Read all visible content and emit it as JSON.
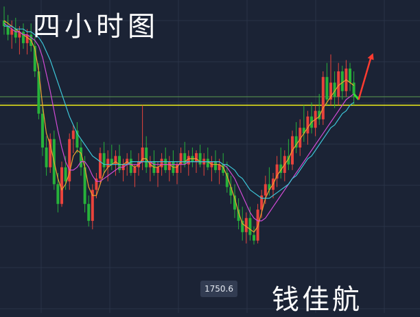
{
  "title": "四小时图",
  "signature": "钱佳航",
  "low_label": "1750.6",
  "colors": {
    "background": "#1b2335",
    "grid": "#2a3348",
    "up": "#e8433c",
    "down": "#27b23a",
    "ma_fast": "#f0a030",
    "ma_mid": "#d24bd6",
    "ma_slow": "#3dc6d8",
    "support_line": "#f2f01a",
    "channel_line": "#5e9e4e",
    "forecast_up": "#ff3b30",
    "forecast_down": "#33dd33"
  },
  "chart_data": {
    "type": "candlestick",
    "price_range": [
      1740,
      1830
    ],
    "horizontal_levels": [
      {
        "name": "yellow",
        "value": 1800
      },
      {
        "name": "green",
        "value": 1803
      }
    ],
    "low_marker": {
      "value": 1750.6
    },
    "candles": [
      {
        "o": 1830,
        "h": 1835,
        "l": 1825,
        "c": 1828
      },
      {
        "o": 1828,
        "h": 1832,
        "l": 1823,
        "c": 1825
      },
      {
        "o": 1825,
        "h": 1830,
        "l": 1820,
        "c": 1827
      },
      {
        "o": 1827,
        "h": 1831,
        "l": 1822,
        "c": 1824
      },
      {
        "o": 1824,
        "h": 1828,
        "l": 1818,
        "c": 1826
      },
      {
        "o": 1826,
        "h": 1829,
        "l": 1820,
        "c": 1822
      },
      {
        "o": 1822,
        "h": 1827,
        "l": 1818,
        "c": 1825
      },
      {
        "o": 1825,
        "h": 1829,
        "l": 1819,
        "c": 1821
      },
      {
        "o": 1821,
        "h": 1824,
        "l": 1810,
        "c": 1812
      },
      {
        "o": 1812,
        "h": 1815,
        "l": 1795,
        "c": 1797
      },
      {
        "o": 1797,
        "h": 1800,
        "l": 1782,
        "c": 1785
      },
      {
        "o": 1785,
        "h": 1789,
        "l": 1775,
        "c": 1778
      },
      {
        "o": 1778,
        "h": 1790,
        "l": 1776,
        "c": 1788
      },
      {
        "o": 1788,
        "h": 1791,
        "l": 1770,
        "c": 1772
      },
      {
        "o": 1772,
        "h": 1776,
        "l": 1762,
        "c": 1765
      },
      {
        "o": 1765,
        "h": 1780,
        "l": 1764,
        "c": 1778
      },
      {
        "o": 1778,
        "h": 1782,
        "l": 1770,
        "c": 1773
      },
      {
        "o": 1773,
        "h": 1790,
        "l": 1770,
        "c": 1788
      },
      {
        "o": 1788,
        "h": 1793,
        "l": 1783,
        "c": 1791
      },
      {
        "o": 1791,
        "h": 1794,
        "l": 1783,
        "c": 1785
      },
      {
        "o": 1785,
        "h": 1788,
        "l": 1775,
        "c": 1778
      },
      {
        "o": 1778,
        "h": 1782,
        "l": 1762,
        "c": 1765
      },
      {
        "o": 1765,
        "h": 1768,
        "l": 1757,
        "c": 1759
      },
      {
        "o": 1759,
        "h": 1772,
        "l": 1756,
        "c": 1770
      },
      {
        "o": 1770,
        "h": 1776,
        "l": 1767,
        "c": 1774
      },
      {
        "o": 1774,
        "h": 1785,
        "l": 1772,
        "c": 1783
      },
      {
        "o": 1783,
        "h": 1787,
        "l": 1776,
        "c": 1778
      },
      {
        "o": 1778,
        "h": 1784,
        "l": 1773,
        "c": 1781
      },
      {
        "o": 1781,
        "h": 1786,
        "l": 1777,
        "c": 1779
      },
      {
        "o": 1779,
        "h": 1784,
        "l": 1775,
        "c": 1782
      },
      {
        "o": 1782,
        "h": 1786,
        "l": 1776,
        "c": 1777
      },
      {
        "o": 1777,
        "h": 1781,
        "l": 1773,
        "c": 1779
      },
      {
        "o": 1779,
        "h": 1783,
        "l": 1775,
        "c": 1781
      },
      {
        "o": 1781,
        "h": 1784,
        "l": 1775,
        "c": 1776
      },
      {
        "o": 1776,
        "h": 1779,
        "l": 1771,
        "c": 1778
      },
      {
        "o": 1778,
        "h": 1783,
        "l": 1775,
        "c": 1780
      },
      {
        "o": 1780,
        "h": 1800,
        "l": 1777,
        "c": 1785
      },
      {
        "o": 1785,
        "h": 1789,
        "l": 1776,
        "c": 1778
      },
      {
        "o": 1778,
        "h": 1782,
        "l": 1773,
        "c": 1780
      },
      {
        "o": 1780,
        "h": 1784,
        "l": 1775,
        "c": 1776
      },
      {
        "o": 1776,
        "h": 1780,
        "l": 1771,
        "c": 1778
      },
      {
        "o": 1778,
        "h": 1783,
        "l": 1775,
        "c": 1781
      },
      {
        "o": 1781,
        "h": 1785,
        "l": 1776,
        "c": 1777
      },
      {
        "o": 1777,
        "h": 1782,
        "l": 1773,
        "c": 1780
      },
      {
        "o": 1780,
        "h": 1784,
        "l": 1775,
        "c": 1776
      },
      {
        "o": 1776,
        "h": 1780,
        "l": 1772,
        "c": 1779
      },
      {
        "o": 1779,
        "h": 1785,
        "l": 1776,
        "c": 1783
      },
      {
        "o": 1783,
        "h": 1787,
        "l": 1778,
        "c": 1779
      },
      {
        "o": 1779,
        "h": 1784,
        "l": 1775,
        "c": 1782
      },
      {
        "o": 1782,
        "h": 1785,
        "l": 1778,
        "c": 1780
      },
      {
        "o": 1780,
        "h": 1784,
        "l": 1776,
        "c": 1783
      },
      {
        "o": 1783,
        "h": 1786,
        "l": 1778,
        "c": 1779
      },
      {
        "o": 1779,
        "h": 1783,
        "l": 1775,
        "c": 1781
      },
      {
        "o": 1781,
        "h": 1785,
        "l": 1777,
        "c": 1778
      },
      {
        "o": 1778,
        "h": 1782,
        "l": 1773,
        "c": 1780
      },
      {
        "o": 1780,
        "h": 1784,
        "l": 1776,
        "c": 1777
      },
      {
        "o": 1777,
        "h": 1781,
        "l": 1772,
        "c": 1779
      },
      {
        "o": 1779,
        "h": 1783,
        "l": 1775,
        "c": 1776
      },
      {
        "o": 1776,
        "h": 1780,
        "l": 1769,
        "c": 1771
      },
      {
        "o": 1771,
        "h": 1775,
        "l": 1765,
        "c": 1768
      },
      {
        "o": 1768,
        "h": 1772,
        "l": 1760,
        "c": 1763
      },
      {
        "o": 1763,
        "h": 1767,
        "l": 1756,
        "c": 1759
      },
      {
        "o": 1759,
        "h": 1764,
        "l": 1752,
        "c": 1755
      },
      {
        "o": 1755,
        "h": 1762,
        "l": 1751,
        "c": 1760
      },
      {
        "o": 1760,
        "h": 1764,
        "l": 1752,
        "c": 1754
      },
      {
        "o": 1754,
        "h": 1757,
        "l": 1750.6,
        "c": 1752
      },
      {
        "o": 1752,
        "h": 1765,
        "l": 1751,
        "c": 1763
      },
      {
        "o": 1763,
        "h": 1770,
        "l": 1760,
        "c": 1768
      },
      {
        "o": 1768,
        "h": 1775,
        "l": 1765,
        "c": 1772
      },
      {
        "o": 1772,
        "h": 1778,
        "l": 1768,
        "c": 1770
      },
      {
        "o": 1770,
        "h": 1776,
        "l": 1767,
        "c": 1774
      },
      {
        "o": 1774,
        "h": 1782,
        "l": 1771,
        "c": 1779
      },
      {
        "o": 1779,
        "h": 1785,
        "l": 1774,
        "c": 1776
      },
      {
        "o": 1776,
        "h": 1784,
        "l": 1773,
        "c": 1782
      },
      {
        "o": 1782,
        "h": 1788,
        "l": 1777,
        "c": 1779
      },
      {
        "o": 1779,
        "h": 1791,
        "l": 1777,
        "c": 1789
      },
      {
        "o": 1789,
        "h": 1794,
        "l": 1783,
        "c": 1785
      },
      {
        "o": 1785,
        "h": 1795,
        "l": 1782,
        "c": 1792
      },
      {
        "o": 1792,
        "h": 1800,
        "l": 1787,
        "c": 1790
      },
      {
        "o": 1790,
        "h": 1798,
        "l": 1786,
        "c": 1796
      },
      {
        "o": 1796,
        "h": 1801,
        "l": 1790,
        "c": 1792
      },
      {
        "o": 1792,
        "h": 1800,
        "l": 1789,
        "c": 1798
      },
      {
        "o": 1798,
        "h": 1804,
        "l": 1793,
        "c": 1795
      },
      {
        "o": 1795,
        "h": 1812,
        "l": 1793,
        "c": 1810
      },
      {
        "o": 1810,
        "h": 1815,
        "l": 1800,
        "c": 1802
      },
      {
        "o": 1802,
        "h": 1818,
        "l": 1800,
        "c": 1808
      },
      {
        "o": 1808,
        "h": 1812,
        "l": 1799,
        "c": 1803
      },
      {
        "o": 1803,
        "h": 1815,
        "l": 1800,
        "c": 1812
      },
      {
        "o": 1812,
        "h": 1814,
        "l": 1802,
        "c": 1805
      },
      {
        "o": 1805,
        "h": 1816,
        "l": 1803,
        "c": 1813
      },
      {
        "o": 1813,
        "h": 1815,
        "l": 1805,
        "c": 1808
      },
      {
        "o": 1808,
        "h": 1812,
        "l": 1800,
        "c": 1804
      }
    ],
    "ma_fast": [
      1830,
      1829,
      1828,
      1827,
      1826,
      1825,
      1824,
      1823,
      1820,
      1812,
      1800,
      1790,
      1786,
      1780,
      1774,
      1770,
      1772,
      1776,
      1782,
      1784,
      1783,
      1778,
      1771,
      1768,
      1768,
      1772,
      1776,
      1778,
      1779,
      1780,
      1779,
      1779,
      1780,
      1779,
      1778,
      1779,
      1781,
      1781,
      1779,
      1778,
      1778,
      1779,
      1779,
      1779,
      1778,
      1778,
      1780,
      1780,
      1781,
      1781,
      1781,
      1780,
      1780,
      1780,
      1779,
      1779,
      1779,
      1778,
      1775,
      1771,
      1767,
      1762,
      1758,
      1757,
      1756,
      1755,
      1757,
      1762,
      1767,
      1770,
      1772,
      1775,
      1777,
      1779,
      1781,
      1784,
      1786,
      1788,
      1790,
      1792,
      1794,
      1795,
      1796,
      1799,
      1801,
      1803,
      1805,
      1807,
      1808,
      1809,
      1808,
      1807
    ],
    "ma_mid": [
      1829,
      1828,
      1827,
      1826,
      1826,
      1825,
      1825,
      1824,
      1823,
      1821,
      1817,
      1811,
      1805,
      1798,
      1791,
      1785,
      1780,
      1777,
      1777,
      1778,
      1780,
      1780,
      1778,
      1775,
      1773,
      1773,
      1774,
      1775,
      1776,
      1777,
      1778,
      1778,
      1779,
      1779,
      1779,
      1779,
      1780,
      1780,
      1780,
      1779,
      1779,
      1779,
      1779,
      1779,
      1779,
      1779,
      1779,
      1779,
      1780,
      1780,
      1780,
      1780,
      1780,
      1780,
      1780,
      1780,
      1780,
      1779,
      1778,
      1776,
      1774,
      1771,
      1768,
      1765,
      1762,
      1760,
      1759,
      1759,
      1760,
      1762,
      1764,
      1766,
      1768,
      1770,
      1772,
      1774,
      1776,
      1778,
      1780,
      1782,
      1784,
      1786,
      1788,
      1790,
      1792,
      1794,
      1796,
      1798,
      1800,
      1802,
      1803,
      1804
    ],
    "ma_slow": [
      1828,
      1828,
      1828,
      1827,
      1827,
      1827,
      1826,
      1826,
      1825,
      1824,
      1822,
      1819,
      1816,
      1812,
      1808,
      1804,
      1800,
      1796,
      1793,
      1790,
      1788,
      1786,
      1784,
      1782,
      1781,
      1780,
      1779,
      1779,
      1779,
      1779,
      1779,
      1779,
      1779,
      1780,
      1780,
      1780,
      1780,
      1780,
      1780,
      1780,
      1780,
      1780,
      1780,
      1780,
      1780,
      1780,
      1780,
      1780,
      1780,
      1780,
      1780,
      1780,
      1780,
      1780,
      1780,
      1780,
      1780,
      1779,
      1779,
      1778,
      1777,
      1775,
      1774,
      1772,
      1770,
      1769,
      1768,
      1767,
      1767,
      1767,
      1768,
      1769,
      1770,
      1771,
      1772,
      1774,
      1775,
      1777,
      1779,
      1781,
      1782,
      1784,
      1786,
      1788,
      1790,
      1792,
      1793,
      1795,
      1797,
      1798,
      1800,
      1801
    ]
  }
}
